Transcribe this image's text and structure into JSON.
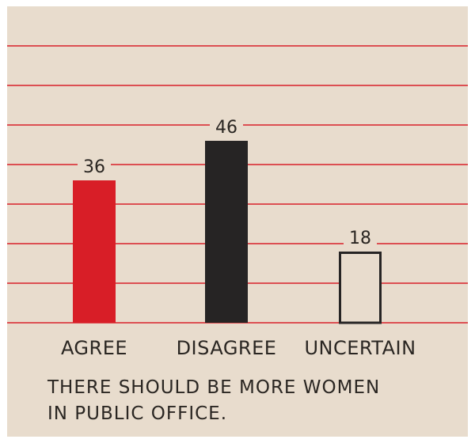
{
  "chart_data": {
    "type": "bar",
    "categories": [
      "AGREE",
      "DISAGREE",
      "UNCERTAIN"
    ],
    "values": [
      36,
      46,
      18
    ],
    "data_labels": [
      "36",
      "46",
      "18"
    ],
    "title": "",
    "xlabel": "",
    "ylabel": "",
    "ylim": [
      0,
      70
    ],
    "grid": true,
    "colors": {
      "background": "#e8dccd",
      "gridline": "#d8202a",
      "bars": [
        "#d81e27",
        "#262424",
        "#e8dccd"
      ],
      "bar_outline": "#262424",
      "text": "#2a2622"
    }
  },
  "caption": {
    "line1": "THERE SHOULD BE MORE WOMEN",
    "line2": "IN PUBLIC OFFICE."
  }
}
